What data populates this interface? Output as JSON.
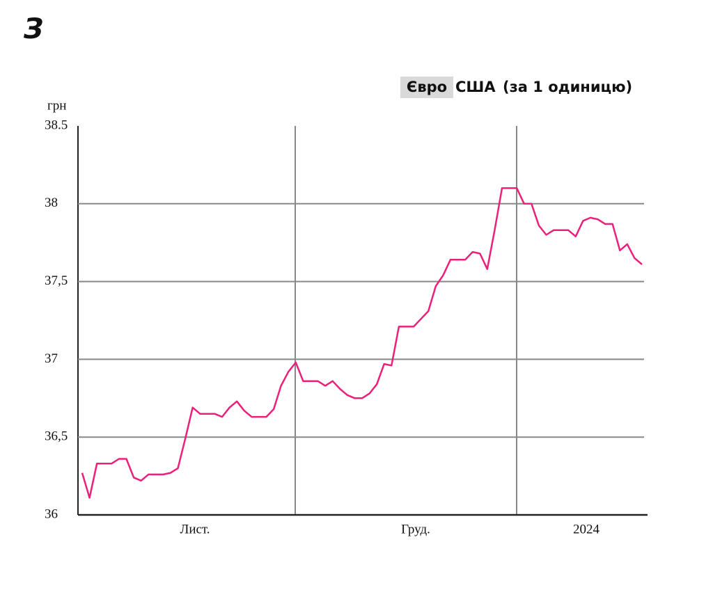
{
  "logo": "З",
  "chart_data": {
    "type": "line",
    "tabs": [
      "Євро"
    ],
    "title": "(за 1 одиницю)",
    "y_label": "грн",
    "xtick_labels": [
      "Лист.",
      "Груд.",
      "2024"
    ],
    "ylim": [
      36,
      38.5
    ],
    "yticks": [
      36,
      {
        "value": 36.5,
        "label": "36,5"
      },
      37,
      {
        "value": 37.5,
        "label": "37,5"
      },
      38,
      38.5
    ],
    "grid": true,
    "series": [
      {
        "name": "США",
        "color": "#ec1f7a",
        "values": [
          36.27,
          36.11,
          36.33,
          36.33,
          36.33,
          36.36,
          36.36,
          36.24,
          36.22,
          36.26,
          36.26,
          36.26,
          36.27,
          36.3,
          36.49,
          36.69,
          36.65,
          36.65,
          36.65,
          36.63,
          36.69,
          36.73,
          36.67,
          36.63,
          36.63,
          36.63,
          36.68,
          36.83,
          36.92,
          36.98,
          36.86,
          36.86,
          36.86,
          36.83,
          36.86,
          36.81,
          36.77,
          36.75,
          36.75,
          36.78,
          36.84,
          36.97,
          36.96,
          37.21,
          37.21,
          37.21,
          37.26,
          37.31,
          37.47,
          37.54,
          37.64,
          37.64,
          37.64,
          37.69,
          37.68,
          37.58,
          37.83,
          38.1,
          38.1,
          38.1,
          38.0,
          38.0,
          37.86,
          37.8,
          37.83,
          37.83,
          37.83,
          37.79,
          37.89,
          37.91,
          37.9,
          37.87,
          37.87,
          37.7,
          37.74,
          37.65,
          37.61
        ]
      }
    ]
  }
}
